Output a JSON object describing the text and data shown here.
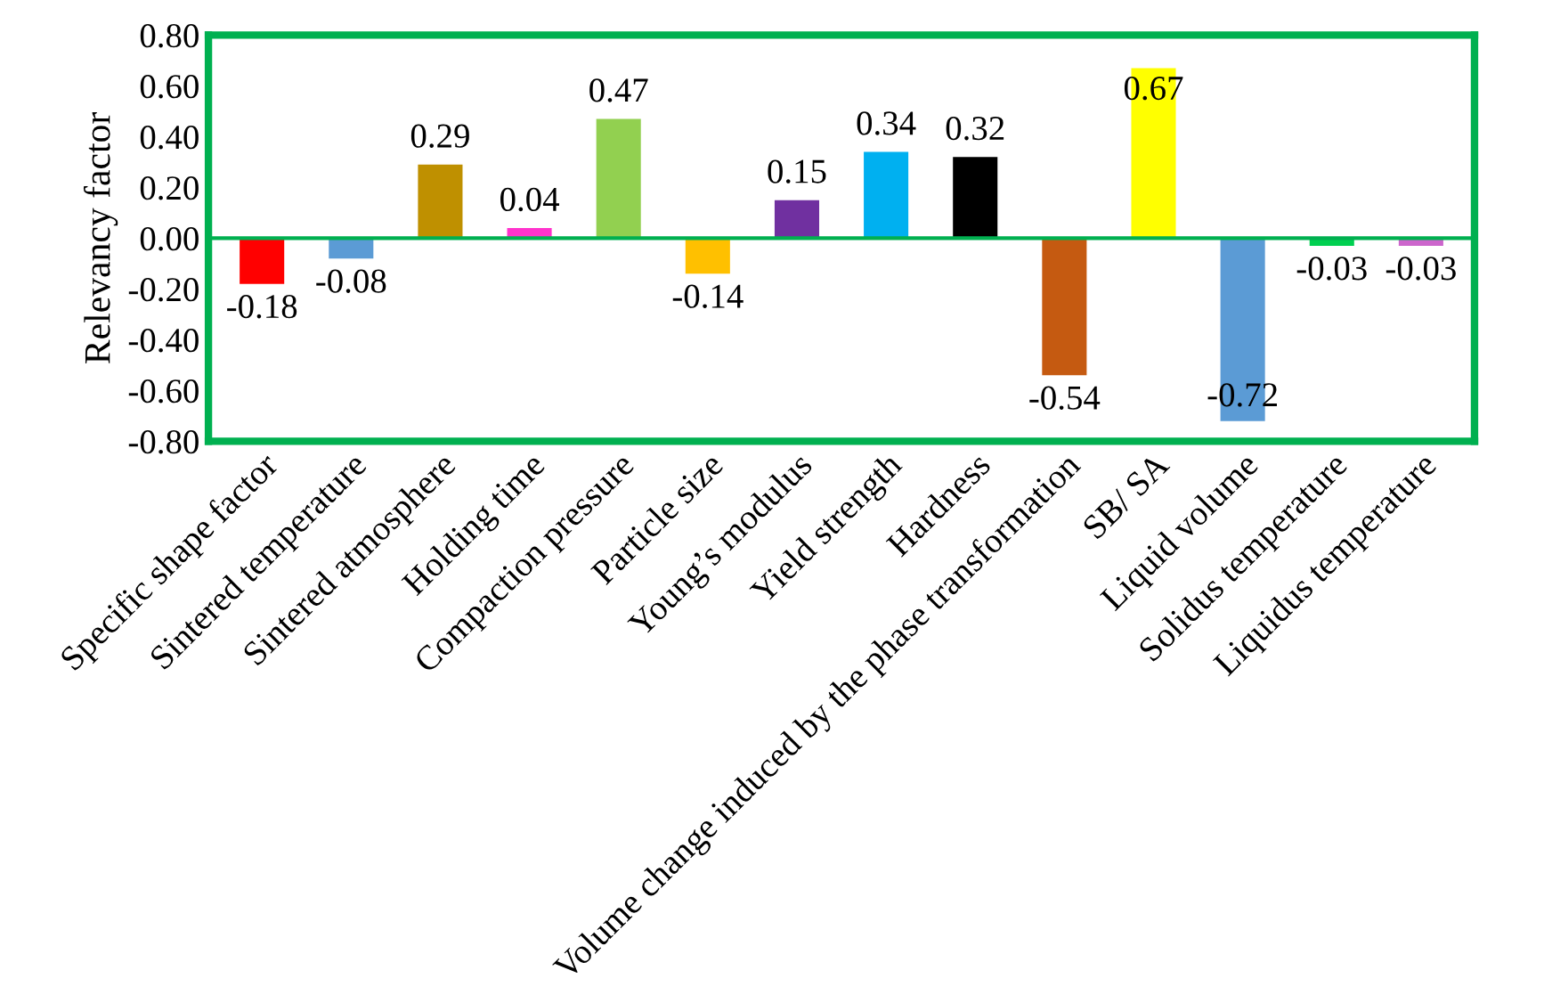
{
  "chart_data": {
    "type": "bar",
    "ylabel": "Relevancy factor",
    "categories": [
      "Specific shape factor",
      "Sintered temperature",
      "Sintered atmosphere",
      "Holding time",
      "Compaction pressure",
      "Particle size",
      "Young’s modulus",
      "Yield strength",
      "Hardness",
      "Volume change induced by the phase transformation",
      "SB/ SA",
      "Liquid volume",
      "Solidus temperature",
      "Liquidus temperature"
    ],
    "values": [
      -0.18,
      -0.08,
      0.29,
      0.04,
      0.47,
      -0.14,
      0.15,
      0.34,
      0.32,
      -0.54,
      0.67,
      -0.72,
      -0.03,
      -0.03
    ],
    "colors": [
      "#ff0000",
      "#5b9bd5",
      "#bf9000",
      "#ff33cc",
      "#92d050",
      "#ffc000",
      "#7030a0",
      "#00b0f0",
      "#000000",
      "#c55a11",
      "#ffff00",
      "#5b9bd5",
      "#00d050",
      "#cc66cc"
    ],
    "ylim": [
      -0.8,
      0.8
    ],
    "yticks": [
      {
        "value": -0.8,
        "label": "-0.80"
      },
      {
        "value": -0.6,
        "label": "-0.60"
      },
      {
        "value": -0.4,
        "label": "-0.40"
      },
      {
        "value": -0.2,
        "label": "-0.20"
      },
      {
        "value": 0,
        "label": "0.00"
      },
      {
        "value": 0.2,
        "label": "0.20"
      },
      {
        "value": 0.4,
        "label": "0.40"
      },
      {
        "value": 0.6,
        "label": "0.60"
      },
      {
        "value": 0.8,
        "label": "0.80"
      }
    ],
    "ref_lines": [
      {
        "axis": "y",
        "value": 0,
        "color": "#00b050"
      }
    ],
    "data_labels": true,
    "grid": false
  }
}
